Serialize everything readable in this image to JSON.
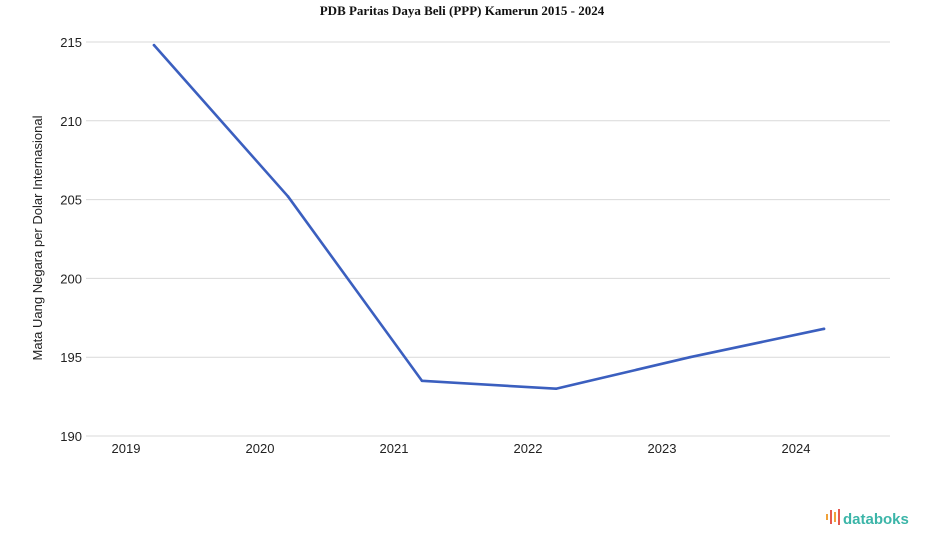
{
  "chart_data": {
    "type": "line",
    "title": "PDB Paritas Daya Beli (PPP) Kamerun 2015 - 2024",
    "ylabel": "Mata Uang Negara per Dolar Internasional",
    "categories": [
      "2019",
      "2020",
      "2021",
      "2022",
      "2023",
      "2024"
    ],
    "series": [
      {
        "values": [
          214.8,
          205.2,
          193.5,
          193.0,
          195.0,
          196.8
        ]
      }
    ],
    "ylim": [
      190,
      215
    ],
    "yticks": [
      190,
      195,
      200,
      205,
      210,
      215
    ],
    "grid": true,
    "line_color": "#3b5fbf"
  },
  "brand": {
    "logo_text": "databoks",
    "logo_color": "#3bb5a8",
    "logo_icon": "databoks-bars-icon"
  }
}
